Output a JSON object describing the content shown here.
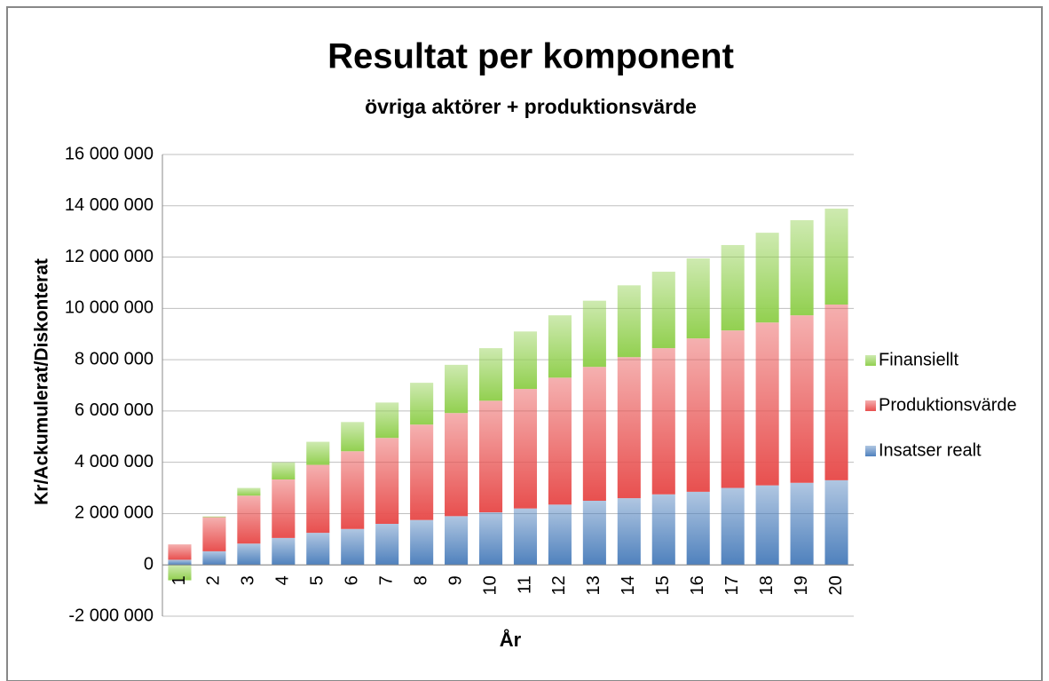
{
  "chart_data": {
    "type": "stacked_bar",
    "title": "Resultat per komponent",
    "subtitle": "övriga aktörer + produktionsvärde",
    "x_label": "År",
    "y_label": "Kr/Ackumulerat/Diskonterat",
    "categories": [
      "1",
      "2",
      "3",
      "4",
      "5",
      "6",
      "7",
      "8",
      "9",
      "10",
      "11",
      "12",
      "13",
      "14",
      "15",
      "16",
      "17",
      "18",
      "19",
      "20"
    ],
    "series": [
      {
        "name": "Insatser realt",
        "color": "#4f81bd",
        "values": [
          200000,
          530000,
          830000,
          1050000,
          1250000,
          1400000,
          1600000,
          1750000,
          1900000,
          2050000,
          2200000,
          2350000,
          2500000,
          2600000,
          2750000,
          2850000,
          3000000,
          3100000,
          3200000,
          3300000
        ]
      },
      {
        "name": "Produktionsvärde",
        "color": "#e8504f",
        "values": [
          600000,
          1330000,
          1870000,
          2280000,
          2650000,
          3030000,
          3350000,
          3720000,
          4020000,
          4350000,
          4660000,
          4950000,
          5220000,
          5500000,
          5700000,
          5980000,
          6140000,
          6350000,
          6530000,
          6850000
        ]
      },
      {
        "name": "Finansiellt",
        "color": "#92d050",
        "values": [
          -600000,
          30000,
          300000,
          670000,
          900000,
          1140000,
          1380000,
          1630000,
          1880000,
          2050000,
          2240000,
          2430000,
          2580000,
          2800000,
          2980000,
          3120000,
          3330000,
          3500000,
          3710000,
          3740000
        ]
      }
    ],
    "ylim": [
      -2000000,
      16000000
    ],
    "yticks": [
      {
        "value": -2000000,
        "label": "-2 000 000"
      },
      0,
      {
        "value": 2000000,
        "label": "2 000 000"
      },
      {
        "value": 4000000,
        "label": "4 000 000"
      },
      {
        "value": 6000000,
        "label": "6 000 000"
      },
      {
        "value": 8000000,
        "label": "8 000 000"
      },
      {
        "value": 10000000,
        "label": "10 000 000"
      },
      {
        "value": 12000000,
        "label": "12 000 000"
      },
      {
        "value": 14000000,
        "label": "14 000 000"
      },
      {
        "value": 16000000,
        "label": "16 000 000"
      }
    ],
    "grid": true,
    "legend": "right"
  }
}
